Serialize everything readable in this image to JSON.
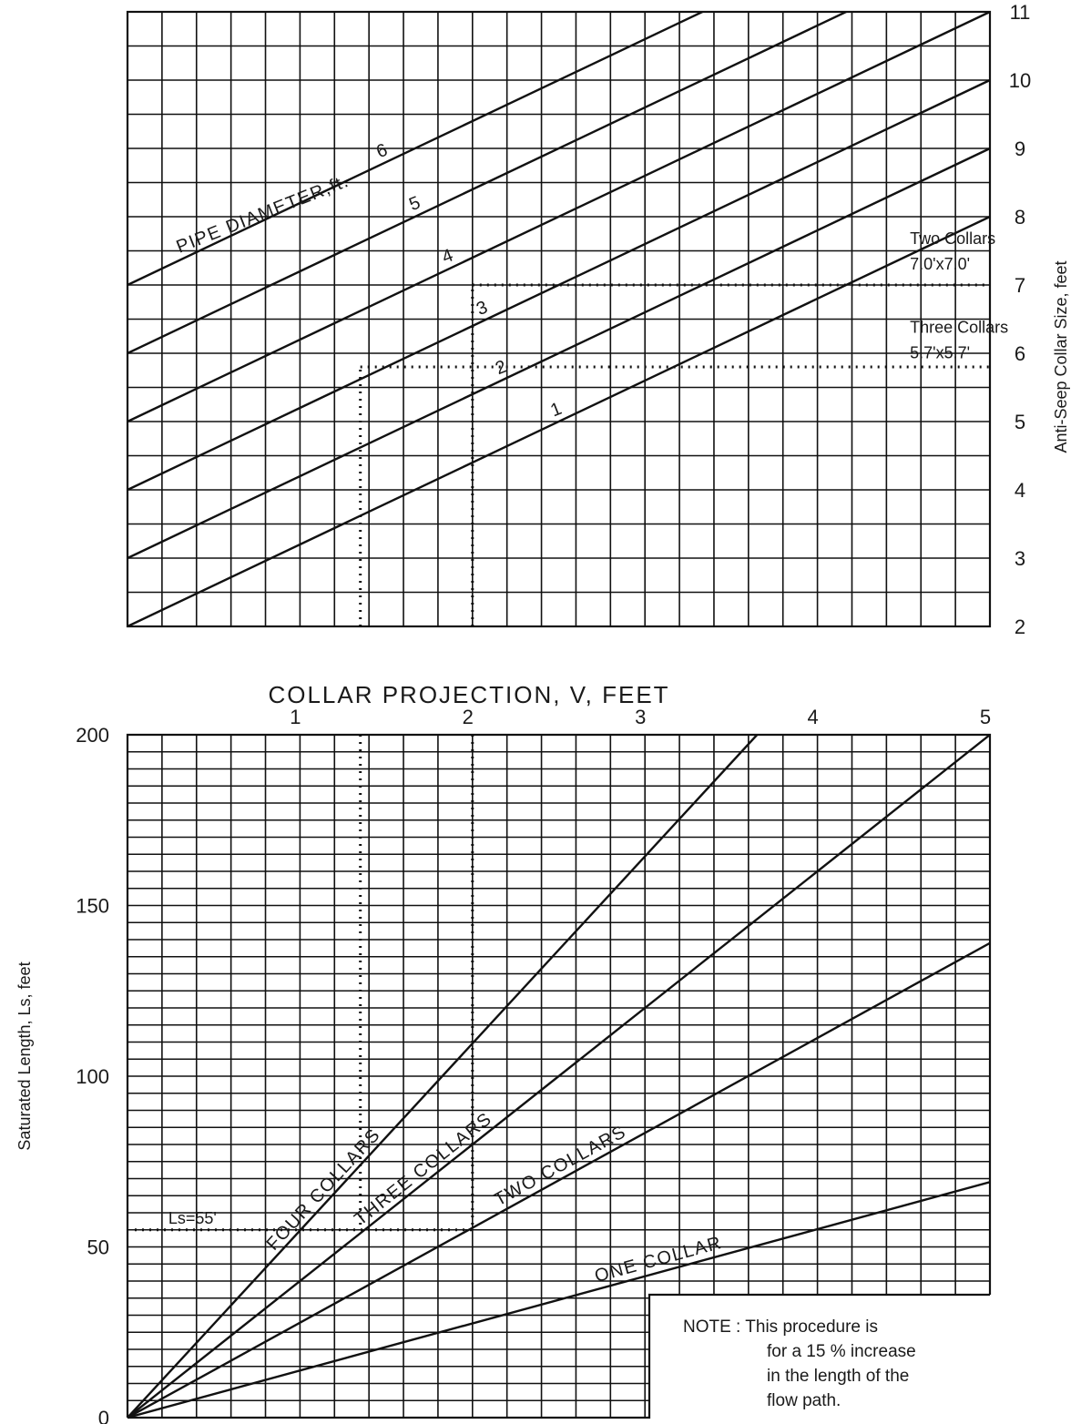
{
  "chart_data": [
    {
      "type": "line",
      "name": "upper",
      "xlabel": "",
      "ylabel": "Anti-Seep Collar Size, feet",
      "x_range": [
        0,
        5
      ],
      "ylim": [
        2,
        11
      ],
      "y_ticks": [
        "2",
        "3",
        "4",
        "5",
        "6",
        "7",
        "8",
        "9",
        "10",
        "11"
      ],
      "grid": true,
      "series_group_label": "PIPE DIAMETER,ft.",
      "series": [
        {
          "name": "1",
          "x": [
            0,
            5
          ],
          "y": [
            2.0,
            8.0
          ]
        },
        {
          "name": "2",
          "x": [
            0,
            5
          ],
          "y": [
            3.0,
            9.0
          ]
        },
        {
          "name": "3",
          "x": [
            0,
            5
          ],
          "y": [
            4.0,
            10.0
          ]
        },
        {
          "name": "4",
          "x": [
            0,
            5
          ],
          "y": [
            5.0,
            11.0
          ]
        },
        {
          "name": "5",
          "x": [
            0,
            5
          ],
          "y": [
            6.0,
            12.0
          ]
        },
        {
          "name": "6",
          "x": [
            0,
            5
          ],
          "y": [
            7.0,
            13.0
          ]
        }
      ],
      "annotations": [
        {
          "lines": [
            "Two Collars",
            "7.0'x7.0'"
          ],
          "x": 4.8,
          "y": 7.6
        },
        {
          "lines": [
            "Three Collars",
            "5.7'x5.7'"
          ],
          "x": 4.8,
          "y": 6.3
        }
      ],
      "example_paths": [
        {
          "x": 2.0,
          "y": 7.0
        },
        {
          "x": 1.35,
          "y": 5.8
        }
      ]
    },
    {
      "type": "line",
      "name": "lower",
      "xlabel": "COLLAR PROJECTION, V, FEET",
      "ylabel": "Saturated Length, Ls, feet",
      "xlim": [
        0,
        5
      ],
      "ylim": [
        0,
        200
      ],
      "x_ticks": [
        "1",
        "2",
        "3",
        "4",
        "5"
      ],
      "y_ticks": [
        "0",
        "50",
        "100",
        "150",
        "200"
      ],
      "grid": true,
      "series": [
        {
          "name": "FOUR COLLARS",
          "x": [
            0,
            3.65
          ],
          "y": [
            0,
            200
          ]
        },
        {
          "name": "THREE COLLARS",
          "x": [
            0,
            5
          ],
          "y": [
            0,
            200
          ]
        },
        {
          "name": "TWO COLLARS",
          "x": [
            0,
            5
          ],
          "y": [
            0,
            139
          ]
        },
        {
          "name": "ONE COLLAR",
          "x": [
            0,
            5
          ],
          "y": [
            0,
            69
          ]
        }
      ],
      "annotations": [
        {
          "lines": [
            "Ls=55'"
          ],
          "x": 0.3,
          "y": 59
        }
      ],
      "example_paths": [
        {
          "x": 1.35,
          "y": 55
        },
        {
          "x": 2.0,
          "y": 55
        }
      ],
      "note": [
        "NOTE : This procedure is",
        "for a 15 % increase",
        "in the length of the",
        "flow path."
      ]
    }
  ]
}
